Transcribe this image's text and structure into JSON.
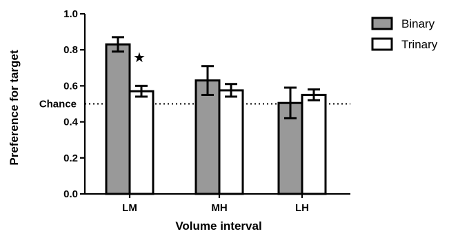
{
  "chart_data": {
    "type": "bar",
    "xlabel": "Volume interval",
    "ylabel": "Preference for target",
    "ylim": [
      0.0,
      1.0
    ],
    "yticks": [
      "0.0",
      "0.2",
      "0.4",
      "0.6",
      "0.8",
      "1.0"
    ],
    "categories": [
      "LM",
      "MH",
      "LH"
    ],
    "series": [
      {
        "name": "Binary",
        "color": "#999999",
        "values": [
          0.83,
          0.63,
          0.505
        ],
        "err_low": [
          0.04,
          0.08,
          0.085
        ],
        "err_high": [
          0.04,
          0.08,
          0.085
        ]
      },
      {
        "name": "Trinary",
        "color": "#ffffff",
        "values": [
          0.57,
          0.575,
          0.55
        ],
        "err_low": [
          0.03,
          0.035,
          0.03
        ],
        "err_high": [
          0.03,
          0.035,
          0.03
        ]
      }
    ],
    "reference_line": {
      "label": "Chance",
      "value": 0.5,
      "style": "dotted"
    },
    "annotations": [
      {
        "text": "★",
        "category": "LM",
        "meaning": "significance marker"
      }
    ],
    "legend_position": "top-right",
    "grid": false
  }
}
